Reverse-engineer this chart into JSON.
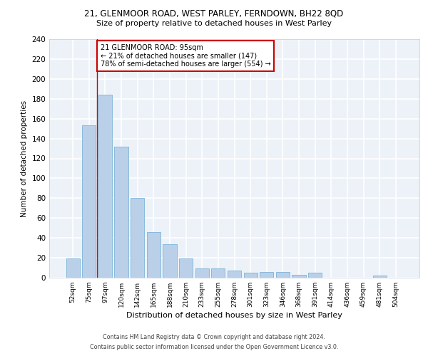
{
  "title_line1": "21, GLENMOOR ROAD, WEST PARLEY, FERNDOWN, BH22 8QD",
  "title_line2": "Size of property relative to detached houses in West Parley",
  "xlabel": "Distribution of detached houses by size in West Parley",
  "ylabel": "Number of detached properties",
  "categories": [
    "52sqm",
    "75sqm",
    "97sqm",
    "120sqm",
    "142sqm",
    "165sqm",
    "188sqm",
    "210sqm",
    "233sqm",
    "255sqm",
    "278sqm",
    "301sqm",
    "323sqm",
    "346sqm",
    "368sqm",
    "391sqm",
    "414sqm",
    "436sqm",
    "459sqm",
    "481sqm",
    "504sqm"
  ],
  "values": [
    19,
    153,
    184,
    132,
    80,
    46,
    34,
    19,
    9,
    9,
    7,
    5,
    6,
    6,
    3,
    5,
    0,
    0,
    0,
    2,
    0
  ],
  "bar_color": "#bad0e8",
  "bar_edge_color": "#6aaad4",
  "property_line_x": 1.5,
  "annotation_text": "21 GLENMOOR ROAD: 95sqm\n← 21% of detached houses are smaller (147)\n78% of semi-detached houses are larger (554) →",
  "annotation_box_color": "#ffffff",
  "annotation_box_edge_color": "#cc0000",
  "line_color": "#cc0000",
  "ylim": [
    0,
    240
  ],
  "yticks": [
    0,
    20,
    40,
    60,
    80,
    100,
    120,
    140,
    160,
    180,
    200,
    220,
    240
  ],
  "footer_line1": "Contains HM Land Registry data © Crown copyright and database right 2024.",
  "footer_line2": "Contains public sector information licensed under the Open Government Licence v3.0.",
  "bg_color": "#edf2f9",
  "grid_color": "#ffffff"
}
